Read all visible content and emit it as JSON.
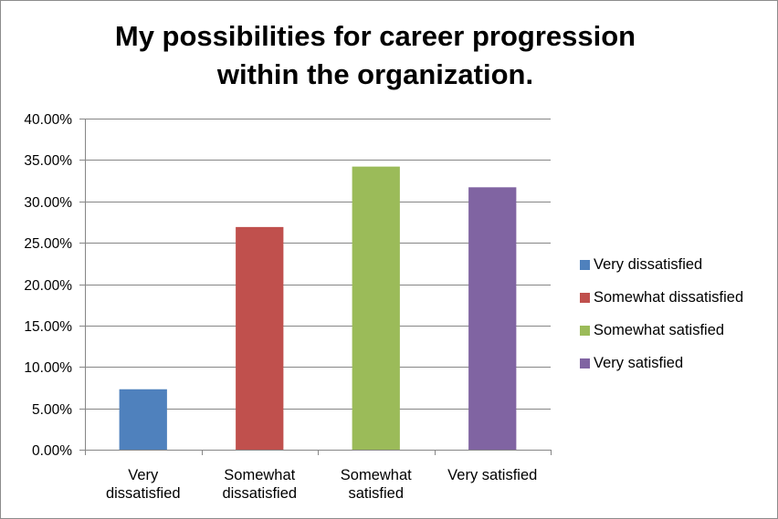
{
  "chart_data": {
    "type": "bar",
    "title_lines": [
      "My possibilities for career progression",
      "within the organization."
    ],
    "categories": [
      [
        "Very",
        "dissatisfied"
      ],
      [
        "Somewhat",
        "dissatisfied"
      ],
      [
        "Somewhat",
        "satisfied"
      ],
      [
        "Very satisfied"
      ]
    ],
    "values": [
      7.3,
      26.9,
      34.2,
      31.7
    ],
    "value_format": "percent_2dp",
    "ylim": [
      0,
      40
    ],
    "yticks": [
      0,
      5,
      10,
      15,
      20,
      25,
      30,
      35,
      40
    ],
    "ytick_labels": [
      "0.00%",
      "5.00%",
      "10.00%",
      "15.00%",
      "20.00%",
      "25.00%",
      "30.00%",
      "35.00%",
      "40.00%"
    ],
    "grid": true,
    "legend_position": "right",
    "legend": [
      "Very dissatisfied",
      "Somewhat dissatisfied",
      "Somewhat satisfied",
      "Very satisfied"
    ],
    "colors": [
      "#4f81bd",
      "#c0504d",
      "#9bbb59",
      "#8064a2"
    ]
  }
}
